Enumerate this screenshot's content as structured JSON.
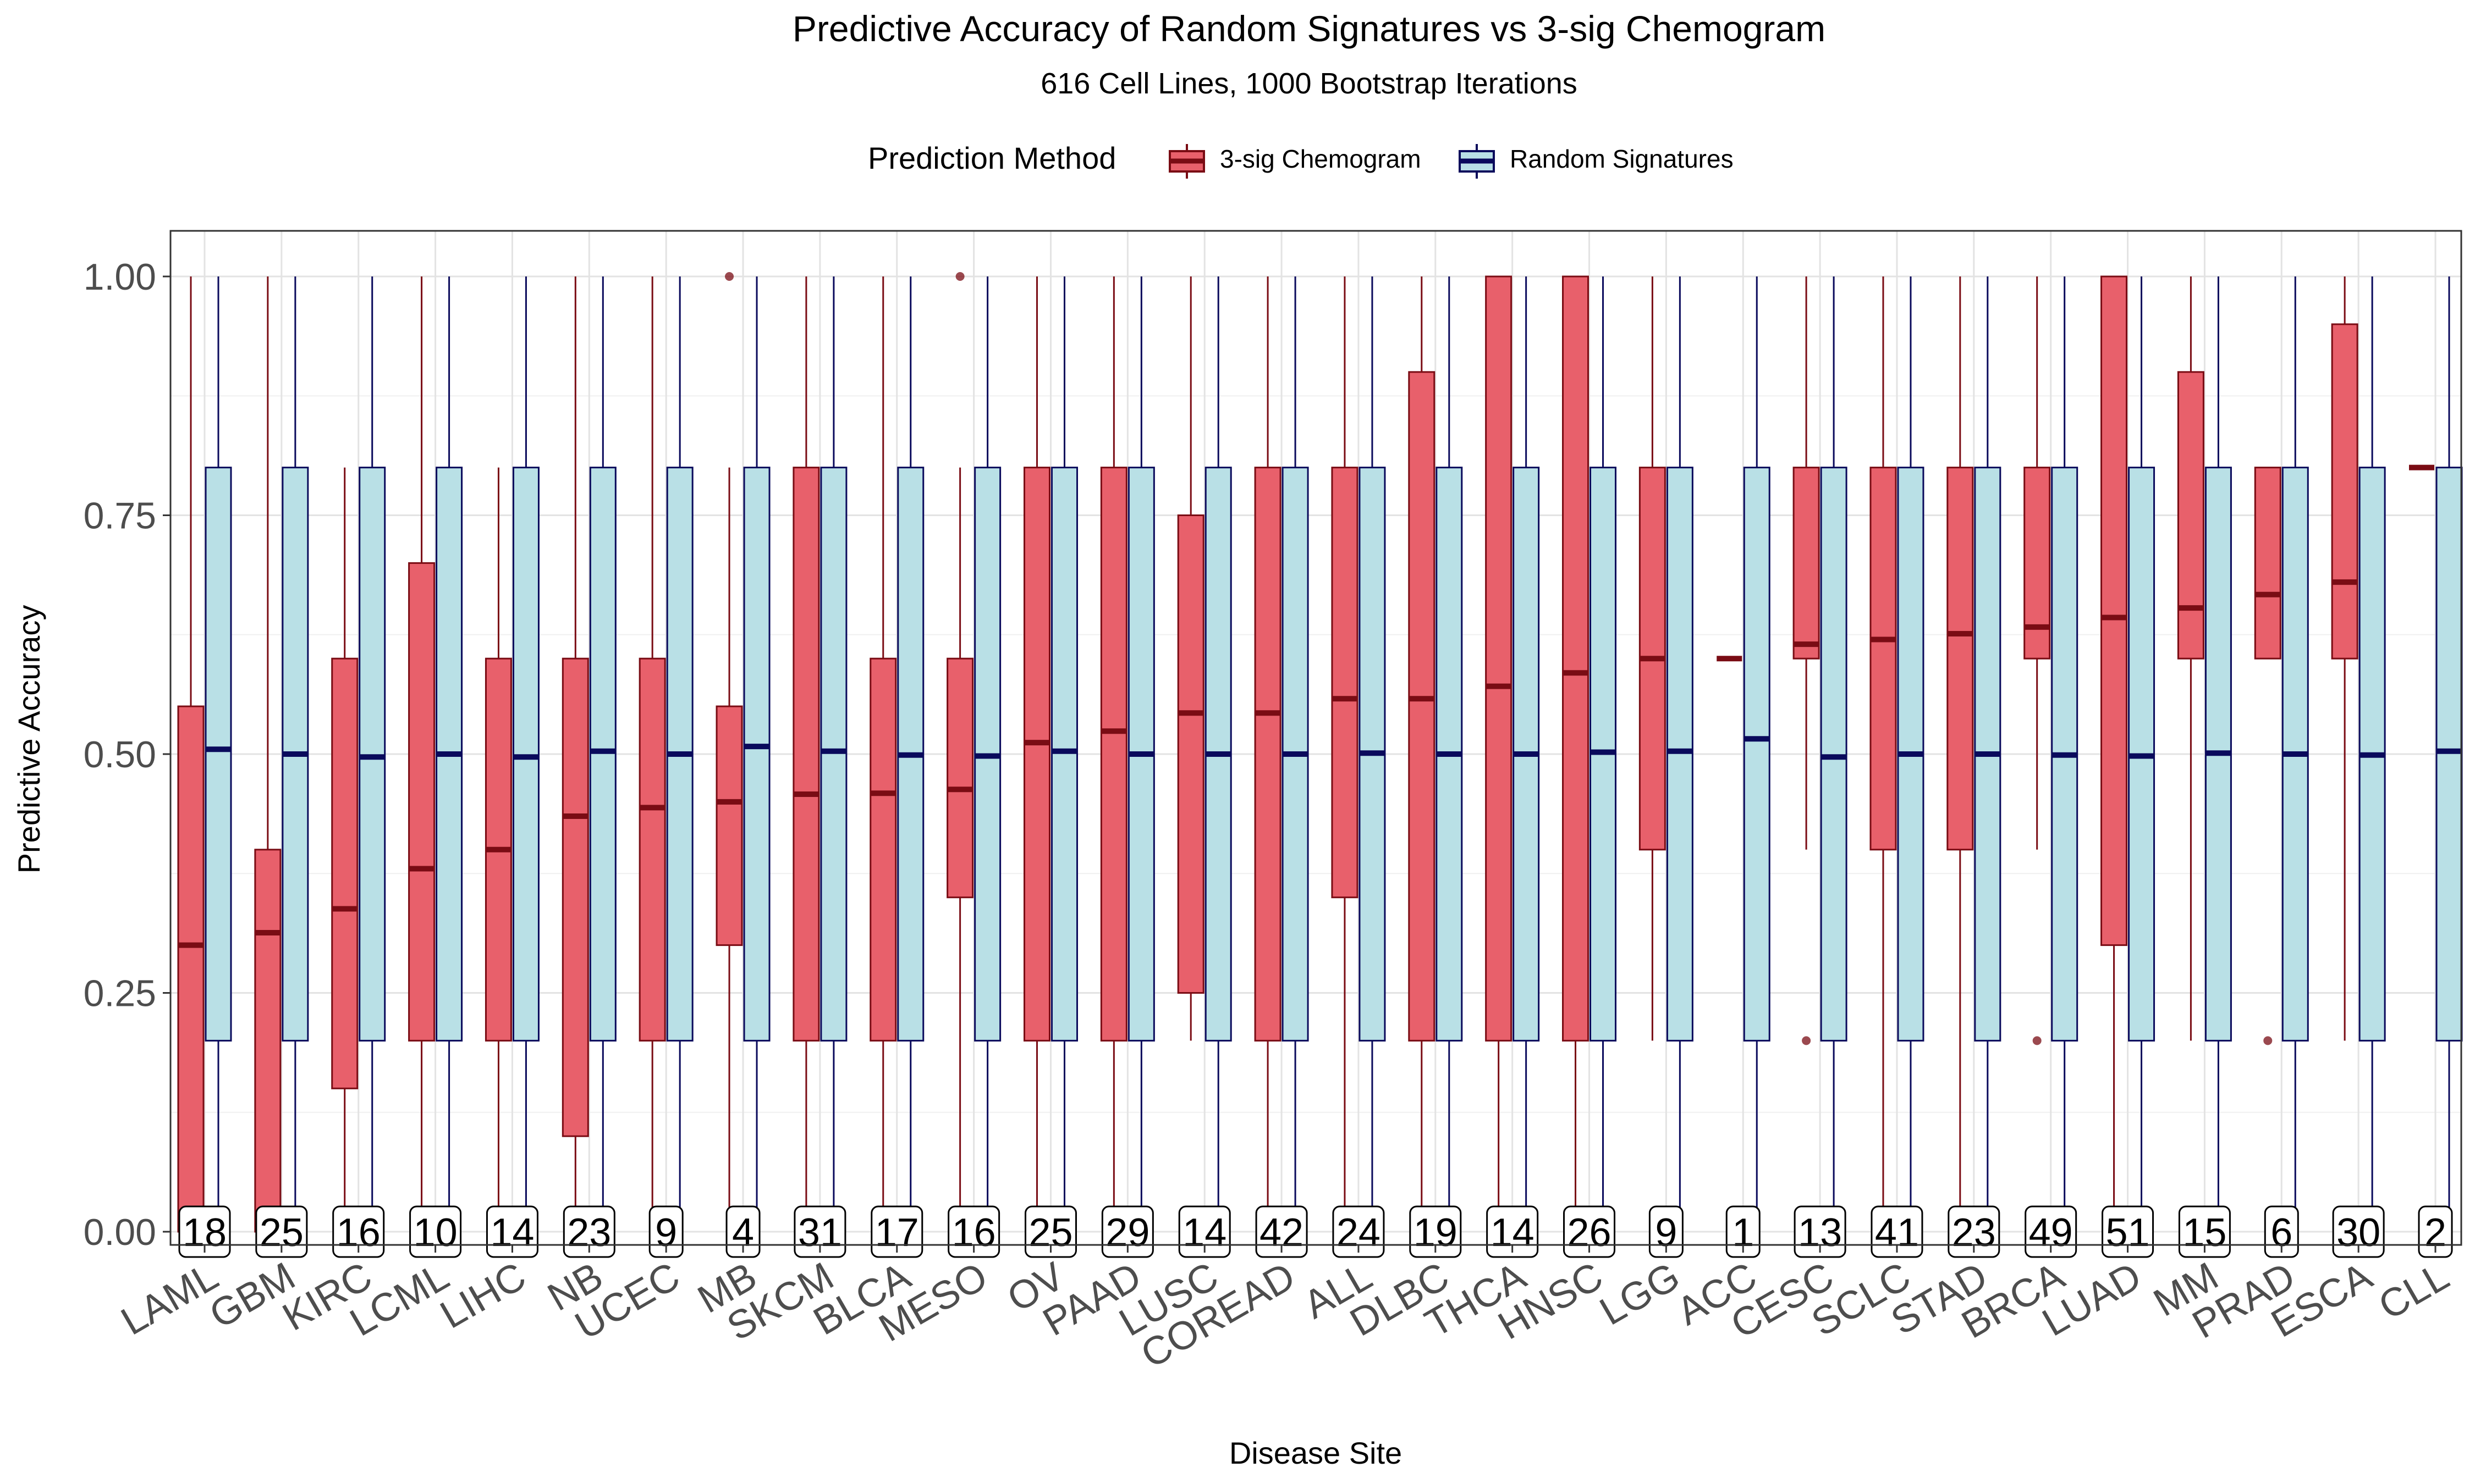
{
  "chart_data": {
    "type": "boxplot",
    "title": "Predictive Accuracy of Random Signatures vs 3-sig Chemogram",
    "subtitle": "616 Cell Lines, 1000 Bootstrap Iterations",
    "xlabel": "Disease Site",
    "ylabel": "Predictive Accuracy",
    "ylim": [
      -0.03,
      1.05
    ],
    "yticks": [
      0.0,
      0.25,
      0.5,
      0.75,
      1.0
    ],
    "ytick_labels": [
      "0.00",
      "0.25",
      "0.50",
      "0.75",
      "1.00"
    ],
    "grid": true,
    "legend": {
      "title": "Prediction Method",
      "position": "top",
      "entries": [
        "3-sig Chemogram",
        "Random Signatures"
      ]
    },
    "colors": {
      "chemogram_fill": "#e8606b",
      "chemogram_line": "#7a0c14",
      "random_fill": "#b9e0e6",
      "random_line": "#0a0a5c"
    },
    "categories": [
      "LAML",
      "GBM",
      "KIRC",
      "LCML",
      "LIHC",
      "NB",
      "UCEC",
      "MB",
      "SKCM",
      "BLCA",
      "MESO",
      "OV",
      "PAAD",
      "LUSC",
      "COREAD",
      "ALL",
      "DLBC",
      "THCA",
      "HNSC",
      "LGG",
      "ACC",
      "CESC",
      "SCLC",
      "STAD",
      "BRCA",
      "LUAD",
      "MM",
      "PRAD",
      "ESCA",
      "CLL"
    ],
    "counts": [
      18,
      25,
      16,
      10,
      14,
      23,
      9,
      4,
      31,
      17,
      16,
      25,
      29,
      14,
      42,
      24,
      19,
      14,
      26,
      9,
      1,
      13,
      41,
      23,
      49,
      51,
      15,
      6,
      30,
      2
    ],
    "series": [
      {
        "name": "3-sig Chemogram",
        "boxes": [
          {
            "min": 0.0,
            "q1": 0.0,
            "median": 0.3,
            "q3": 0.55,
            "max": 1.0,
            "outliers": []
          },
          {
            "min": 0.0,
            "q1": 0.0,
            "median": 0.313,
            "q3": 0.4,
            "max": 1.0,
            "outliers": []
          },
          {
            "min": 0.0,
            "q1": 0.15,
            "median": 0.338,
            "q3": 0.6,
            "max": 0.8,
            "outliers": []
          },
          {
            "min": 0.0,
            "q1": 0.2,
            "median": 0.38,
            "q3": 0.7,
            "max": 1.0,
            "outliers": []
          },
          {
            "min": 0.0,
            "q1": 0.2,
            "median": 0.4,
            "q3": 0.6,
            "max": 0.8,
            "outliers": []
          },
          {
            "min": 0.0,
            "q1": 0.1,
            "median": 0.435,
            "q3": 0.6,
            "max": 1.0,
            "outliers": []
          },
          {
            "min": 0.0,
            "q1": 0.2,
            "median": 0.444,
            "q3": 0.6,
            "max": 1.0,
            "outliers": []
          },
          {
            "min": 0.0,
            "q1": 0.3,
            "median": 0.45,
            "q3": 0.55,
            "max": 0.8,
            "outliers": [
              1.0
            ]
          },
          {
            "min": 0.0,
            "q1": 0.2,
            "median": 0.458,
            "q3": 0.8,
            "max": 1.0,
            "outliers": []
          },
          {
            "min": 0.0,
            "q1": 0.2,
            "median": 0.459,
            "q3": 0.6,
            "max": 1.0,
            "outliers": []
          },
          {
            "min": 0.0,
            "q1": 0.35,
            "median": 0.463,
            "q3": 0.6,
            "max": 0.8,
            "outliers": [
              1.0
            ]
          },
          {
            "min": 0.0,
            "q1": 0.2,
            "median": 0.512,
            "q3": 0.8,
            "max": 1.0,
            "outliers": []
          },
          {
            "min": 0.0,
            "q1": 0.2,
            "median": 0.524,
            "q3": 0.8,
            "max": 1.0,
            "outliers": []
          },
          {
            "min": 0.2,
            "q1": 0.25,
            "median": 0.543,
            "q3": 0.75,
            "max": 1.0,
            "outliers": []
          },
          {
            "min": 0.0,
            "q1": 0.2,
            "median": 0.543,
            "q3": 0.8,
            "max": 1.0,
            "outliers": []
          },
          {
            "min": 0.0,
            "q1": 0.35,
            "median": 0.558,
            "q3": 0.8,
            "max": 1.0,
            "outliers": []
          },
          {
            "min": 0.0,
            "q1": 0.2,
            "median": 0.558,
            "q3": 0.9,
            "max": 1.0,
            "outliers": []
          },
          {
            "min": 0.0,
            "q1": 0.2,
            "median": 0.571,
            "q3": 1.0,
            "max": 1.0,
            "outliers": []
          },
          {
            "min": 0.0,
            "q1": 0.2,
            "median": 0.585,
            "q3": 1.0,
            "max": 1.0,
            "outliers": []
          },
          {
            "min": 0.2,
            "q1": 0.4,
            "median": 0.6,
            "q3": 0.8,
            "max": 1.0,
            "outliers": []
          },
          {
            "min": 0.6,
            "q1": 0.6,
            "median": 0.6,
            "q3": 0.6,
            "max": 0.6,
            "outliers": []
          },
          {
            "min": 0.4,
            "q1": 0.6,
            "median": 0.615,
            "q3": 0.8,
            "max": 1.0,
            "outliers": [
              0.2
            ]
          },
          {
            "min": 0.0,
            "q1": 0.4,
            "median": 0.62,
            "q3": 0.8,
            "max": 1.0,
            "outliers": []
          },
          {
            "min": 0.0,
            "q1": 0.4,
            "median": 0.626,
            "q3": 0.8,
            "max": 1.0,
            "outliers": []
          },
          {
            "min": 0.4,
            "q1": 0.6,
            "median": 0.633,
            "q3": 0.8,
            "max": 1.0,
            "outliers": [
              0.2
            ]
          },
          {
            "min": 0.0,
            "q1": 0.3,
            "median": 0.643,
            "q3": 1.0,
            "max": 1.0,
            "outliers": []
          },
          {
            "min": 0.2,
            "q1": 0.6,
            "median": 0.653,
            "q3": 0.9,
            "max": 1.0,
            "outliers": []
          },
          {
            "min": 0.6,
            "q1": 0.6,
            "median": 0.667,
            "q3": 0.8,
            "max": 0.8,
            "outliers": [
              0.2
            ]
          },
          {
            "min": 0.2,
            "q1": 0.6,
            "median": 0.68,
            "q3": 0.95,
            "max": 1.0,
            "outliers": []
          },
          {
            "min": 0.8,
            "q1": 0.8,
            "median": 0.8,
            "q3": 0.8,
            "max": 0.8,
            "outliers": []
          }
        ]
      },
      {
        "name": "Random Signatures",
        "boxes": [
          {
            "min": 0.0,
            "q1": 0.2,
            "median": 0.505,
            "q3": 0.8,
            "max": 1.0,
            "outliers": []
          },
          {
            "min": 0.0,
            "q1": 0.2,
            "median": 0.5,
            "q3": 0.8,
            "max": 1.0,
            "outliers": []
          },
          {
            "min": 0.0,
            "q1": 0.2,
            "median": 0.497,
            "q3": 0.8,
            "max": 1.0,
            "outliers": []
          },
          {
            "min": 0.0,
            "q1": 0.2,
            "median": 0.5,
            "q3": 0.8,
            "max": 1.0,
            "outliers": []
          },
          {
            "min": 0.0,
            "q1": 0.2,
            "median": 0.497,
            "q3": 0.8,
            "max": 1.0,
            "outliers": []
          },
          {
            "min": 0.0,
            "q1": 0.2,
            "median": 0.503,
            "q3": 0.8,
            "max": 1.0,
            "outliers": []
          },
          {
            "min": 0.0,
            "q1": 0.2,
            "median": 0.5,
            "q3": 0.8,
            "max": 1.0,
            "outliers": []
          },
          {
            "min": 0.0,
            "q1": 0.2,
            "median": 0.508,
            "q3": 0.8,
            "max": 1.0,
            "outliers": []
          },
          {
            "min": 0.0,
            "q1": 0.2,
            "median": 0.503,
            "q3": 0.8,
            "max": 1.0,
            "outliers": []
          },
          {
            "min": 0.0,
            "q1": 0.2,
            "median": 0.499,
            "q3": 0.8,
            "max": 1.0,
            "outliers": []
          },
          {
            "min": 0.0,
            "q1": 0.2,
            "median": 0.498,
            "q3": 0.8,
            "max": 1.0,
            "outliers": []
          },
          {
            "min": 0.0,
            "q1": 0.2,
            "median": 0.503,
            "q3": 0.8,
            "max": 1.0,
            "outliers": []
          },
          {
            "min": 0.0,
            "q1": 0.2,
            "median": 0.5,
            "q3": 0.8,
            "max": 1.0,
            "outliers": []
          },
          {
            "min": 0.0,
            "q1": 0.2,
            "median": 0.5,
            "q3": 0.8,
            "max": 1.0,
            "outliers": []
          },
          {
            "min": 0.0,
            "q1": 0.2,
            "median": 0.5,
            "q3": 0.8,
            "max": 1.0,
            "outliers": []
          },
          {
            "min": 0.0,
            "q1": 0.2,
            "median": 0.501,
            "q3": 0.8,
            "max": 1.0,
            "outliers": []
          },
          {
            "min": 0.0,
            "q1": 0.2,
            "median": 0.5,
            "q3": 0.8,
            "max": 1.0,
            "outliers": []
          },
          {
            "min": 0.0,
            "q1": 0.2,
            "median": 0.5,
            "q3": 0.8,
            "max": 1.0,
            "outliers": []
          },
          {
            "min": 0.0,
            "q1": 0.2,
            "median": 0.502,
            "q3": 0.8,
            "max": 1.0,
            "outliers": []
          },
          {
            "min": 0.0,
            "q1": 0.2,
            "median": 0.503,
            "q3": 0.8,
            "max": 1.0,
            "outliers": []
          },
          {
            "min": 0.0,
            "q1": 0.2,
            "median": 0.516,
            "q3": 0.8,
            "max": 1.0,
            "outliers": []
          },
          {
            "min": 0.0,
            "q1": 0.2,
            "median": 0.497,
            "q3": 0.8,
            "max": 1.0,
            "outliers": []
          },
          {
            "min": 0.0,
            "q1": 0.2,
            "median": 0.5,
            "q3": 0.8,
            "max": 1.0,
            "outliers": []
          },
          {
            "min": 0.0,
            "q1": 0.2,
            "median": 0.5,
            "q3": 0.8,
            "max": 1.0,
            "outliers": []
          },
          {
            "min": 0.0,
            "q1": 0.2,
            "median": 0.499,
            "q3": 0.8,
            "max": 1.0,
            "outliers": []
          },
          {
            "min": 0.0,
            "q1": 0.2,
            "median": 0.498,
            "q3": 0.8,
            "max": 1.0,
            "outliers": []
          },
          {
            "min": 0.0,
            "q1": 0.2,
            "median": 0.501,
            "q3": 0.8,
            "max": 1.0,
            "outliers": []
          },
          {
            "min": 0.0,
            "q1": 0.2,
            "median": 0.5,
            "q3": 0.8,
            "max": 1.0,
            "outliers": []
          },
          {
            "min": 0.0,
            "q1": 0.2,
            "median": 0.499,
            "q3": 0.8,
            "max": 1.0,
            "outliers": []
          },
          {
            "min": 0.0,
            "q1": 0.2,
            "median": 0.503,
            "q3": 0.8,
            "max": 1.0,
            "outliers": []
          }
        ]
      }
    ]
  }
}
